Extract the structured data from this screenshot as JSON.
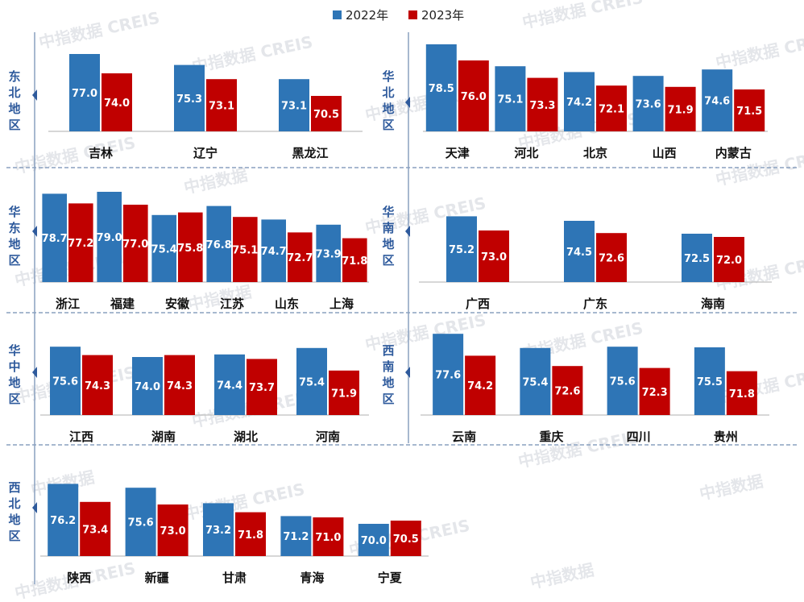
{
  "legend": [
    {
      "label": "2022年",
      "color": "#2e75b6"
    },
    {
      "label": "2023年",
      "color": "#c00000"
    }
  ],
  "watermark": [
    "中指数据 CREIS",
    "中指数据"
  ],
  "chart_data": [
    {
      "type": "bar",
      "region": "东北地区",
      "region_chars": [
        "东",
        "北",
        "地",
        "区"
      ],
      "ylim": [
        65,
        80
      ],
      "categories": [
        "吉林",
        "辽宁",
        "黑龙江"
      ],
      "series": [
        {
          "name": "2022年",
          "values": [
            77.0,
            75.3,
            73.1
          ]
        },
        {
          "name": "2023年",
          "values": [
            74.0,
            73.1,
            70.5
          ]
        }
      ]
    },
    {
      "type": "bar",
      "region": "华北地区",
      "region_chars": [
        "华",
        "北",
        "地",
        "区"
      ],
      "ylim": [
        65,
        80
      ],
      "categories": [
        "天津",
        "河北",
        "北京",
        "山西",
        "内蒙古"
      ],
      "series": [
        {
          "name": "2022年",
          "values": [
            78.5,
            75.1,
            74.2,
            73.6,
            74.6
          ]
        },
        {
          "name": "2023年",
          "values": [
            76.0,
            73.3,
            72.1,
            71.9,
            71.5
          ]
        }
      ]
    },
    {
      "type": "bar",
      "region": "华东地区",
      "region_chars": [
        "华",
        "东",
        "地",
        "区"
      ],
      "ylim": [
        65,
        80
      ],
      "categories": [
        "浙江",
        "福建",
        "安徽",
        "江苏",
        "山东",
        "上海"
      ],
      "series": [
        {
          "name": "2022年",
          "values": [
            78.7,
            79.0,
            75.4,
            76.8,
            74.7,
            73.9
          ]
        },
        {
          "name": "2023年",
          "values": [
            77.2,
            77.0,
            75.8,
            75.1,
            72.7,
            71.8
          ]
        }
      ]
    },
    {
      "type": "bar",
      "region": "华南地区",
      "region_chars": [
        "华",
        "南",
        "地",
        "区"
      ],
      "ylim": [
        65,
        80
      ],
      "categories": [
        "广西",
        "广东",
        "海南"
      ],
      "series": [
        {
          "name": "2022年",
          "values": [
            75.2,
            74.5,
            72.5
          ]
        },
        {
          "name": "2023年",
          "values": [
            73.0,
            72.6,
            72.0
          ]
        }
      ]
    },
    {
      "type": "bar",
      "region": "华中地区",
      "region_chars": [
        "华",
        "中",
        "地",
        "区"
      ],
      "ylim": [
        65,
        80
      ],
      "categories": [
        "江西",
        "湖南",
        "湖北",
        "河南"
      ],
      "series": [
        {
          "name": "2022年",
          "values": [
            75.6,
            74.0,
            74.4,
            75.4
          ]
        },
        {
          "name": "2023年",
          "values": [
            74.3,
            74.3,
            73.7,
            71.9
          ]
        }
      ]
    },
    {
      "type": "bar",
      "region": "西南地区",
      "region_chars": [
        "西",
        "南",
        "地",
        "区"
      ],
      "ylim": [
        65,
        80
      ],
      "categories": [
        "云南",
        "重庆",
        "四川",
        "贵州"
      ],
      "series": [
        {
          "name": "2022年",
          "values": [
            77.6,
            75.4,
            75.6,
            75.5
          ]
        },
        {
          "name": "2023年",
          "values": [
            74.2,
            72.6,
            72.3,
            71.8
          ]
        }
      ]
    },
    {
      "type": "bar",
      "region": "西北地区",
      "region_chars": [
        "西",
        "北",
        "地",
        "区"
      ],
      "ylim": [
        65,
        80
      ],
      "categories": [
        "陕西",
        "新疆",
        "甘肃",
        "青海",
        "宁夏"
      ],
      "series": [
        {
          "name": "2022年",
          "values": [
            76.2,
            75.6,
            73.2,
            71.2,
            70.0
          ]
        },
        {
          "name": "2023年",
          "values": [
            73.4,
            73.0,
            71.8,
            71.0,
            70.5
          ]
        }
      ]
    }
  ]
}
